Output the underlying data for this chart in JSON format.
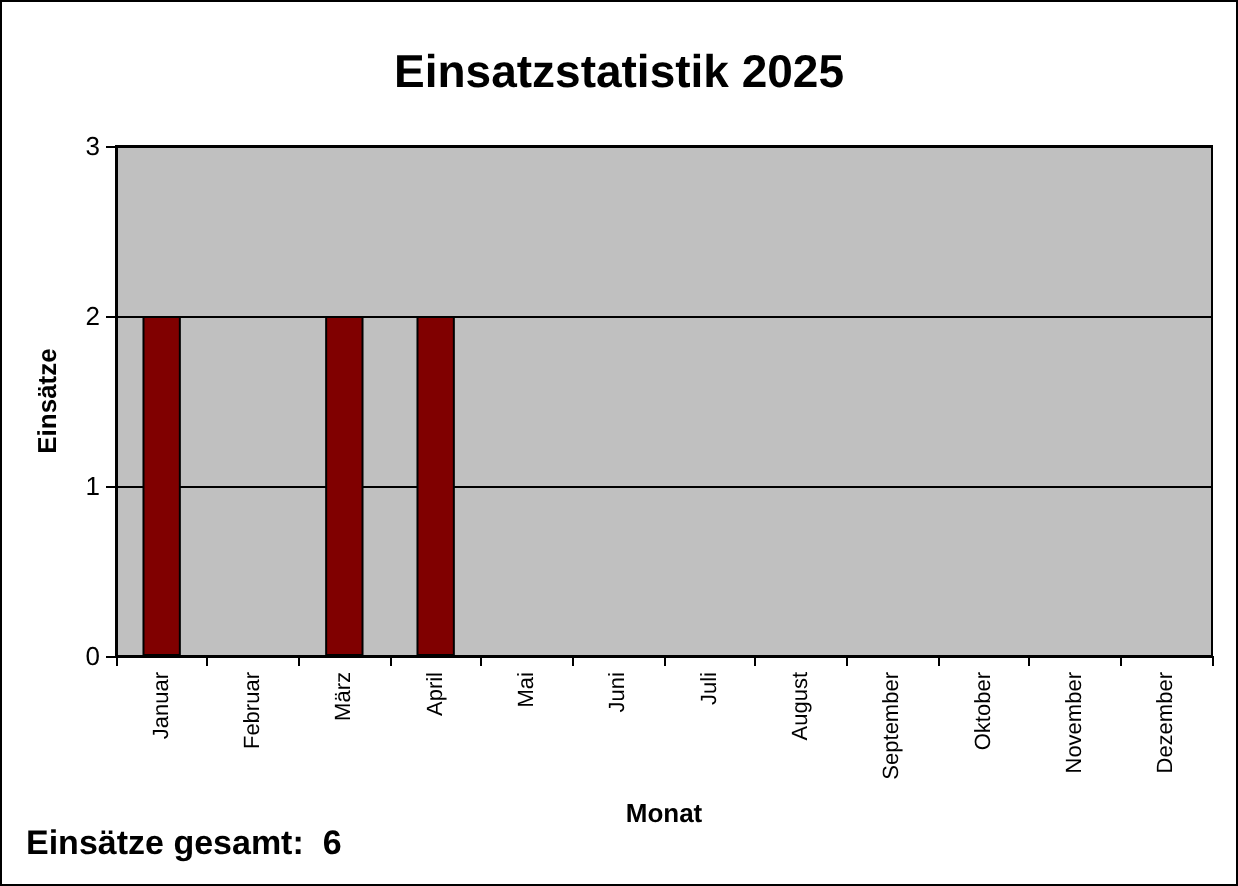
{
  "chart_data": {
    "type": "bar",
    "title": "Einsatzstatistik 2025",
    "xlabel": "Monat",
    "ylabel": "Einsätze",
    "categories": [
      "Januar",
      "Februar",
      "März",
      "April",
      "Mai",
      "Juni",
      "Juli",
      "August",
      "September",
      "Oktober",
      "November",
      "Dezember"
    ],
    "values": [
      2,
      0,
      2,
      2,
      0,
      0,
      0,
      0,
      0,
      0,
      0,
      0
    ],
    "color": "#800000",
    "ylim": [
      0,
      3
    ],
    "yticks": [
      0,
      1,
      2,
      3
    ],
    "grid": "y",
    "annotations": [
      "Einsätze gesamt:  6"
    ]
  }
}
